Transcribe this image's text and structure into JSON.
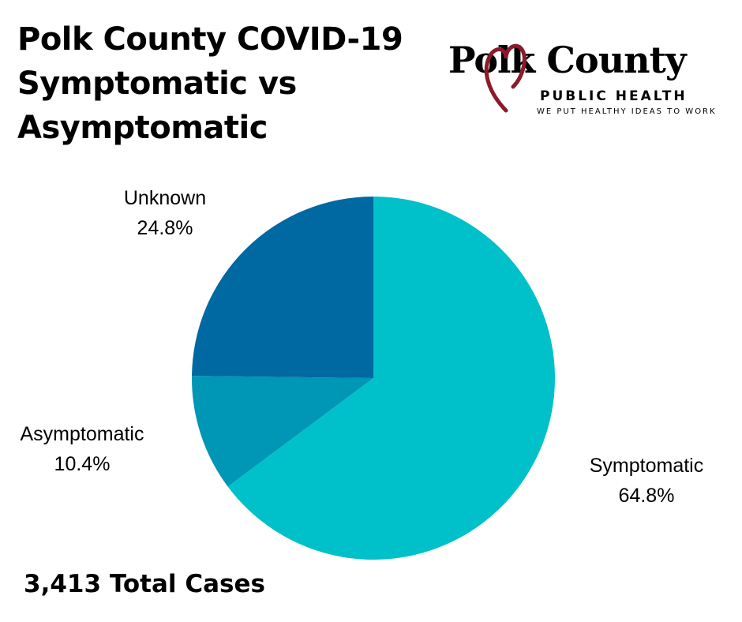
{
  "title_lines": [
    "Polk County COVID-19",
    "Symptomatic vs",
    "Asymptomatic"
  ],
  "logo": {
    "name": "Polk County",
    "sub": "PUBLIC HEALTH",
    "tagline": "WE PUT HEALTHY IDEAS TO WORK",
    "heart_color": "#8b1a2b"
  },
  "total": "3,413 Total Cases",
  "chart_data": {
    "type": "pie",
    "start": "12 o'clock, clockwise",
    "slices": [
      {
        "label": "Symptomatic",
        "pct_text": "64.8%",
        "value": 64.8,
        "color": "#00c0c9"
      },
      {
        "label": "Asymptomatic",
        "pct_text": "10.4%",
        "value": 10.4,
        "color": "#0096b5"
      },
      {
        "label": "Unknown",
        "pct_text": "24.8%",
        "value": 24.8,
        "color": "#0069a1"
      }
    ]
  }
}
